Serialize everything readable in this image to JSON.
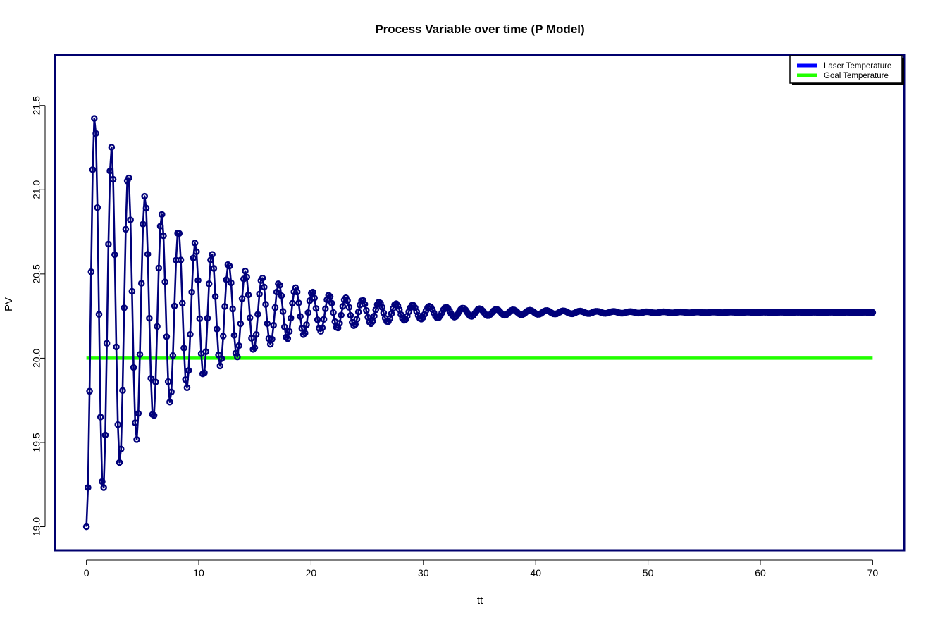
{
  "chart_data": {
    "type": "line",
    "title": "Process Variable over time (P Model)",
    "xlabel": "tt",
    "ylabel": "PV",
    "xlim": [
      -2.8,
      72.8
    ],
    "ylim": [
      18.86,
      21.8
    ],
    "x_ticks": [
      0,
      10,
      20,
      30,
      40,
      50,
      60,
      70
    ],
    "x_tick_labels": [
      "0",
      "10",
      "20",
      "30",
      "40",
      "50",
      "60",
      "70"
    ],
    "y_ticks": [
      19.0,
      19.5,
      20.0,
      20.5,
      21.0,
      21.5
    ],
    "y_tick_labels": [
      "19.0",
      "19.5",
      "20.0",
      "20.5",
      "21.0",
      "21.5"
    ],
    "legend": {
      "position": "top-right",
      "entries": [
        {
          "label": "Laser Temperature",
          "color": "#0000ff"
        },
        {
          "label": "Goal Temperature",
          "color": "#22ff00"
        }
      ]
    },
    "series": [
      {
        "id": "laser",
        "color": "#00007a",
        "markers": "open-circle",
        "model": {
          "x_start": 0,
          "x_end": 70,
          "x_step": 0.14,
          "steady_state": 20.272,
          "initial_value": 19.0,
          "period": 1.49,
          "decay_time_constant": 8.6
        },
        "peak_points": [
          {
            "x": 0.0,
            "y": 19.0
          },
          {
            "x": 0.6,
            "y": 21.7
          },
          {
            "x": 1.35,
            "y": 18.96
          },
          {
            "x": 2.1,
            "y": 21.52
          },
          {
            "x": 2.85,
            "y": 19.1
          },
          {
            "x": 3.6,
            "y": 21.35
          },
          {
            "x": 4.4,
            "y": 19.25
          },
          {
            "x": 5.1,
            "y": 21.24
          },
          {
            "x": 5.9,
            "y": 19.38
          },
          {
            "x": 6.6,
            "y": 21.12
          },
          {
            "x": 7.4,
            "y": 19.48
          },
          {
            "x": 8.1,
            "y": 21.0
          },
          {
            "x": 8.9,
            "y": 19.58
          },
          {
            "x": 9.7,
            "y": 20.93
          },
          {
            "x": 10.5,
            "y": 19.68
          },
          {
            "x": 12.3,
            "y": 20.85
          },
          {
            "x": 13.1,
            "y": 19.74
          },
          {
            "x": 14.3,
            "y": 20.77
          },
          {
            "x": 15.2,
            "y": 19.87
          },
          {
            "x": 17.4,
            "y": 20.61
          },
          {
            "x": 18.2,
            "y": 19.96
          },
          {
            "x": 19.9,
            "y": 20.57
          },
          {
            "x": 20.5,
            "y": 20.0
          },
          {
            "x": 22.2,
            "y": 20.5
          },
          {
            "x": 25.0,
            "y": 20.45
          },
          {
            "x": 30.0,
            "y": 20.4
          },
          {
            "x": 35.0,
            "y": 20.33
          },
          {
            "x": 40.0,
            "y": 20.32
          },
          {
            "x": 50.0,
            "y": 20.29
          },
          {
            "x": 60.0,
            "y": 20.28
          },
          {
            "x": 70.0,
            "y": 20.27
          }
        ]
      },
      {
        "id": "goal",
        "color": "#22ff00",
        "x": [
          0,
          70
        ],
        "y": [
          20.0,
          20.0
        ]
      }
    ]
  }
}
